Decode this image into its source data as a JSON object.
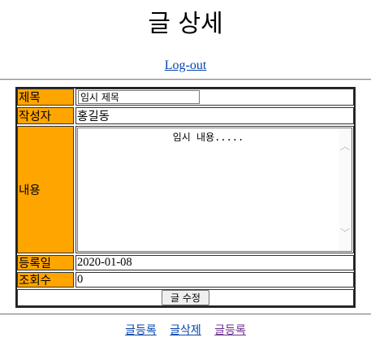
{
  "header": {
    "title": "글 상세",
    "logout_label": "Log-out"
  },
  "form": {
    "title_label": "제목",
    "title_value": "임시 제목",
    "author_label": "작성자",
    "author_value": "홍길동",
    "content_label": "내용",
    "content_value": "임시 내용.....",
    "date_label": "등록일",
    "date_value": "2020-01-08",
    "views_label": "조회수",
    "views_value": "0",
    "submit_label": "글 수정"
  },
  "footer_links": [
    {
      "label": "글등록"
    },
    {
      "label": "글삭제"
    },
    {
      "label": "글등록"
    }
  ],
  "colors": {
    "label_bg": "#ffa500",
    "link": "#0645ad",
    "visited_link": "#6b2c91"
  }
}
